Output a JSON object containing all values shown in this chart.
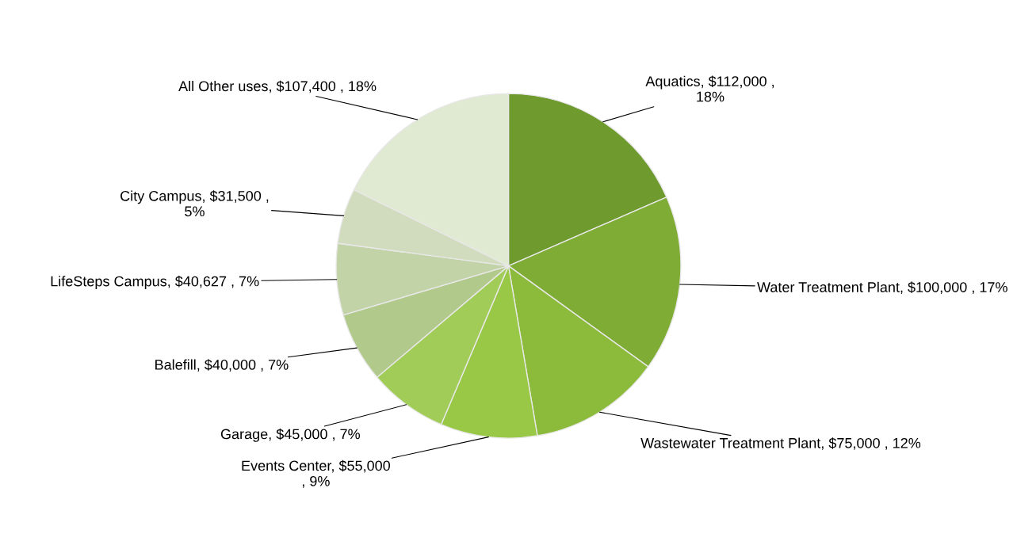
{
  "chart_data": {
    "type": "pie",
    "categories": [
      "Aquatics",
      "Water Treatment Plant",
      "Wastewater Treatment Plant",
      "Events Center",
      "Garage",
      "Balefill",
      "LifeSteps Campus",
      "City Campus",
      "All Other uses"
    ],
    "values": [
      112000,
      100000,
      75000,
      55000,
      45000,
      40000,
      40627,
      31500,
      107400
    ],
    "value_labels": [
      "$112,000 ,\n18%",
      "$100,000 , 17%",
      "$75,000 , 12%",
      "$55,000\n, 9%",
      "$45,000 , 7%",
      "$40,000 , 7%",
      "$40,627 , 7%",
      "$31,500 ,\n5%",
      "$107,400 , 18%"
    ],
    "colors": [
      "#6e9a2e",
      "#7fac34",
      "#8cbb3c",
      "#98c845",
      "#a2cc58",
      "#b2c98c",
      "#c3d3a8",
      "#d0dcbd",
      "#e0e9d1"
    ],
    "legend": false
  }
}
